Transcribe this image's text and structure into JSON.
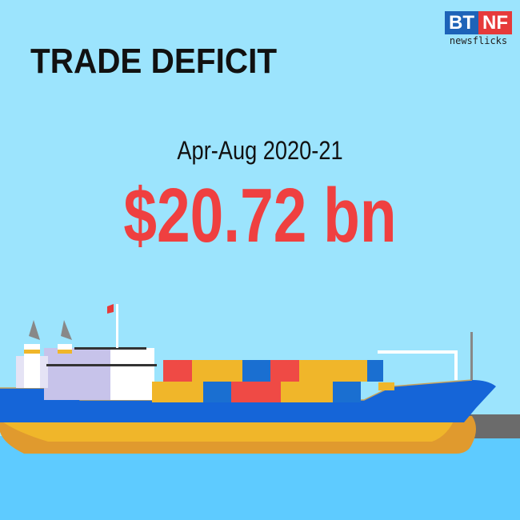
{
  "header": {
    "title": "TRADE DEFICIT"
  },
  "logo": {
    "left": "BT",
    "right": "NF",
    "tagline": "newsflicks"
  },
  "main": {
    "period": "Apr-Aug 2020-21",
    "amount": "$20.72 bn"
  },
  "colors": {
    "sky": "#9ce4fd",
    "water": "#5ecbff",
    "accent_red": "#ef4040",
    "hull_blue": "#1565d8",
    "hull_yellow": "#f0b62a"
  },
  "illustration": {
    "subject": "container-ship-icon"
  }
}
